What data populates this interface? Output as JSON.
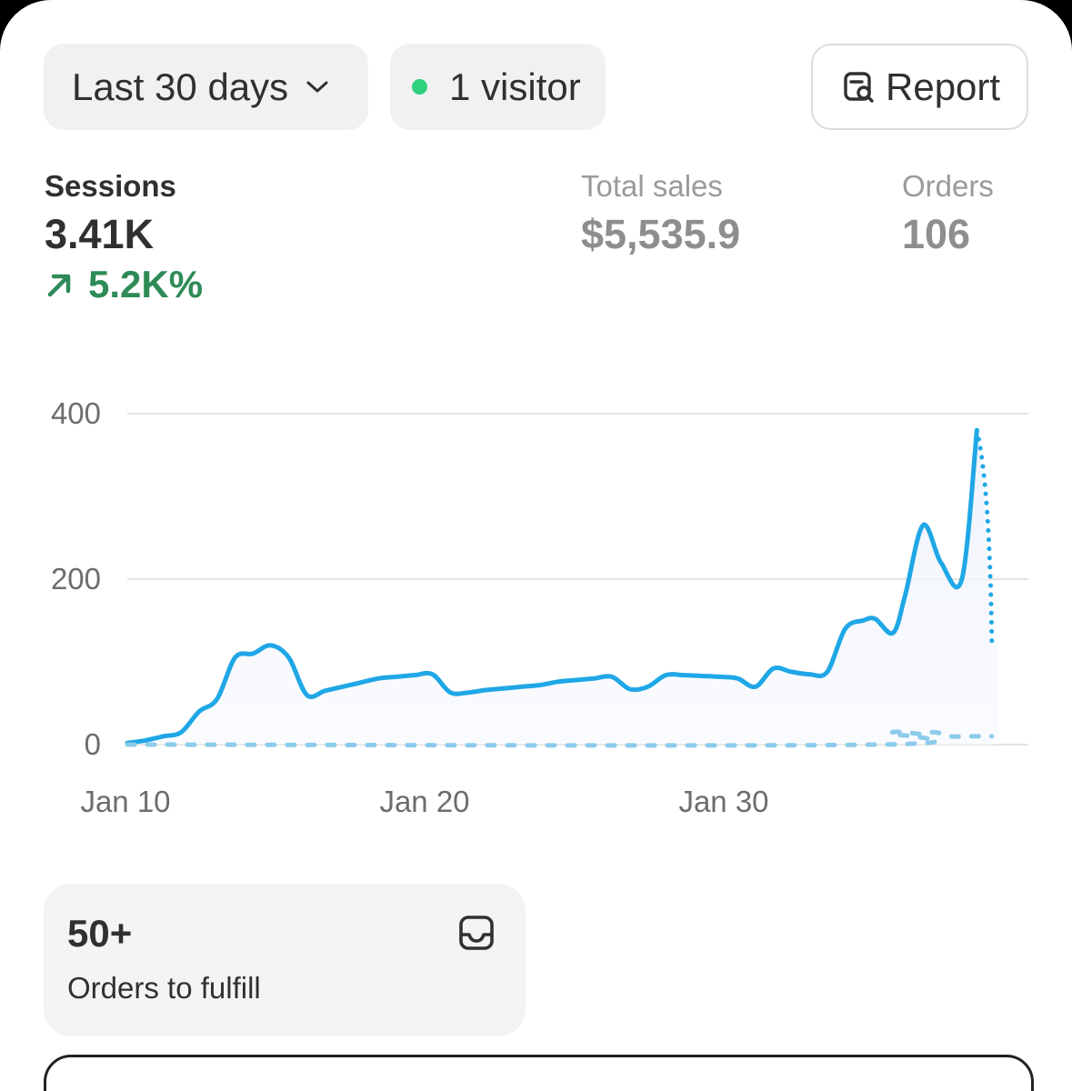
{
  "filters": {
    "date_range_label": "Last 30 days",
    "live_visitors_label": "1 visitor",
    "report_button_label": "Report",
    "live_dot_color": "#2fd07e"
  },
  "metrics": {
    "sessions": {
      "label": "Sessions",
      "value": "3.41K",
      "change": "5.2K%",
      "change_color": "#2e8b57"
    },
    "total_sales": {
      "label": "Total sales",
      "value": "$5,535.9"
    },
    "orders": {
      "label": "Orders",
      "value": "106"
    }
  },
  "chart_data": {
    "type": "line",
    "y_ticks": [
      "400",
      "200",
      "0"
    ],
    "x_ticks": [
      "Jan 10",
      "Jan 20",
      "Jan 30"
    ],
    "ylim": [
      0,
      400
    ],
    "grid": true,
    "line_color": "#1fa7e6",
    "comparison_color": "#8ccbec",
    "series": [
      {
        "style": "solid",
        "x": [
          0,
          0.6,
          1.2,
          1.8,
          2.4,
          3,
          3.6,
          4.2,
          4.8,
          5.4,
          6,
          6.6,
          7.2,
          7.8,
          8.4,
          9,
          9.6,
          10.2,
          10.8,
          11.4,
          12,
          12.6,
          13.2,
          13.8,
          14.4,
          15,
          15.6,
          16.2,
          16.8,
          17.4,
          18,
          18.6,
          19.2,
          19.8,
          20.4,
          21,
          21.6,
          22.2,
          22.8,
          23.4,
          24,
          24.6,
          25,
          25.6,
          26,
          26.6,
          27.2,
          27.9,
          28.4,
          28.9
        ],
        "y": [
          2,
          5,
          10,
          15,
          40,
          55,
          105,
          110,
          120,
          105,
          60,
          65,
          70,
          75,
          80,
          82,
          84,
          85,
          63,
          63,
          66,
          68,
          70,
          72,
          76,
          78,
          80,
          82,
          67,
          70,
          84,
          84,
          83,
          82,
          80,
          70,
          92,
          88,
          85,
          88,
          140,
          150,
          152,
          135,
          180,
          265,
          220,
          200,
          380,
          125
        ]
      },
      {
        "style": "dashed",
        "x": [
          0,
          25.1,
          25.5,
          26,
          26.5,
          27,
          27.5,
          28,
          28.5,
          28.9
        ],
        "y": [
          0,
          0,
          14,
          15,
          13,
          15,
          10,
          10,
          10,
          10
        ]
      }
    ]
  },
  "fulfill_card": {
    "count": "50+",
    "caption": "Orders to fulfill"
  }
}
